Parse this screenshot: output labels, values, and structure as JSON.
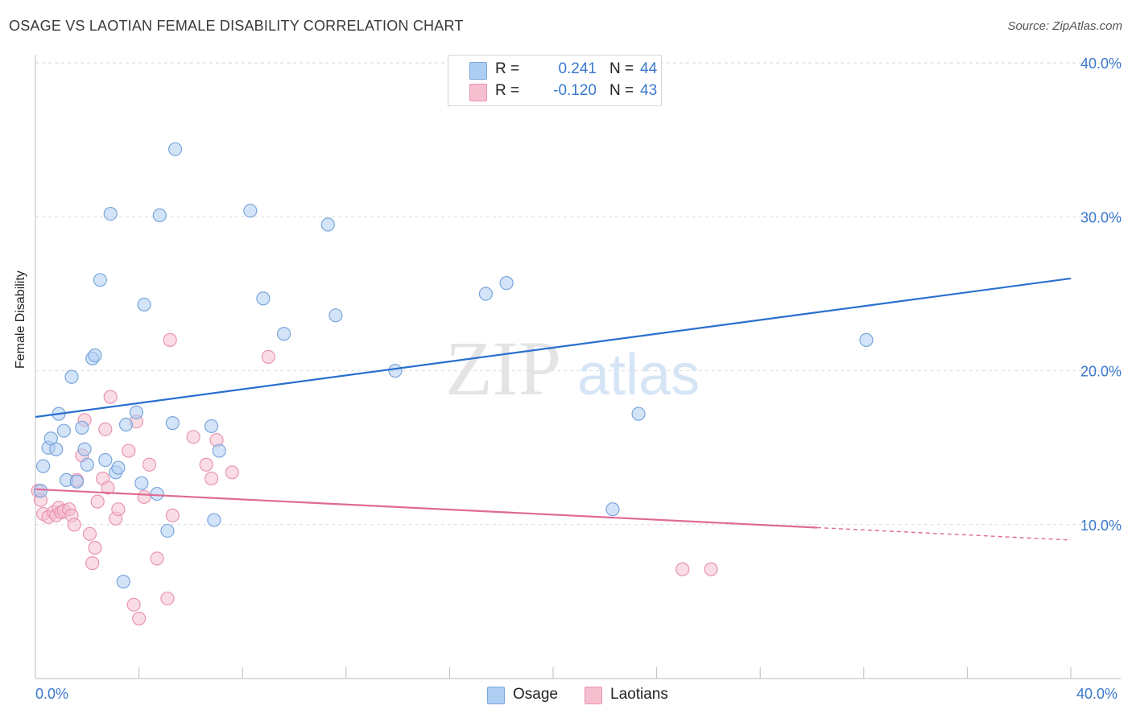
{
  "title": "OSAGE VS LAOTIAN FEMALE DISABILITY CORRELATION CHART",
  "source": "Source: ZipAtlas.com",
  "watermark": {
    "zip": "ZIP",
    "atlas": "atlas"
  },
  "colors": {
    "osage_fill": "#aecdf2",
    "osage_stroke": "#7aa6dc",
    "osage_line": "#2a6fcf",
    "laotian_fill": "#f6bfd0",
    "laotian_stroke": "#e896b0",
    "laotian_line": "#e06a93",
    "axis_text": "#3a78cc",
    "grid": "#dddddd"
  },
  "legend": {
    "rows": [
      {
        "series": "Osage",
        "r_label": "R =",
        "r_value": "0.241",
        "n_label": "N =",
        "n_value": "44"
      },
      {
        "series": "Laotians",
        "r_label": "R =",
        "r_value": "-0.120",
        "n_label": "N =",
        "n_value": "43"
      }
    ]
  },
  "bottom_legend": [
    "Osage",
    "Laotians"
  ],
  "chart_data": {
    "type": "scatter",
    "title": "OSAGE VS LAOTIAN FEMALE DISABILITY CORRELATION CHART",
    "xlabel": "",
    "ylabel": "Female Disability",
    "xlim": [
      0,
      40
    ],
    "ylim": [
      0,
      42
    ],
    "x_tick_labels": [
      "0.0%",
      "40.0%"
    ],
    "y_ticks": [
      10,
      20,
      30,
      40
    ],
    "y_tick_labels": [
      "10.0%",
      "20.0%",
      "30.0%",
      "40.0%"
    ],
    "grid": true,
    "series": [
      {
        "name": "Osage",
        "trend": {
          "x": [
            0,
            40
          ],
          "y": [
            17.0,
            26.0
          ],
          "dashed_from": null
        },
        "points": [
          [
            0.2,
            12.2
          ],
          [
            0.3,
            13.8
          ],
          [
            0.5,
            15.0
          ],
          [
            0.6,
            15.6
          ],
          [
            0.8,
            14.9
          ],
          [
            0.9,
            17.2
          ],
          [
            1.1,
            16.1
          ],
          [
            1.2,
            12.9
          ],
          [
            1.4,
            19.6
          ],
          [
            1.6,
            12.8
          ],
          [
            1.8,
            16.3
          ],
          [
            1.9,
            14.9
          ],
          [
            2.0,
            13.9
          ],
          [
            2.2,
            20.8
          ],
          [
            2.3,
            21.0
          ],
          [
            2.5,
            25.9
          ],
          [
            2.7,
            14.2
          ],
          [
            2.9,
            30.2
          ],
          [
            3.1,
            13.4
          ],
          [
            3.2,
            13.7
          ],
          [
            3.4,
            6.3
          ],
          [
            3.5,
            16.5
          ],
          [
            3.9,
            17.3
          ],
          [
            4.1,
            12.7
          ],
          [
            4.2,
            24.3
          ],
          [
            4.7,
            12.0
          ],
          [
            4.8,
            30.1
          ],
          [
            5.1,
            9.6
          ],
          [
            5.3,
            16.6
          ],
          [
            5.4,
            34.4
          ],
          [
            6.8,
            16.4
          ],
          [
            6.9,
            10.3
          ],
          [
            7.1,
            14.8
          ],
          [
            8.3,
            30.4
          ],
          [
            8.8,
            24.7
          ],
          [
            9.6,
            22.4
          ],
          [
            11.3,
            29.5
          ],
          [
            11.6,
            23.6
          ],
          [
            13.9,
            20.0
          ],
          [
            17.4,
            25.0
          ],
          [
            18.2,
            25.7
          ],
          [
            22.3,
            11.0
          ],
          [
            23.3,
            17.2
          ],
          [
            32.1,
            22.0
          ]
        ]
      },
      {
        "name": "Laotians",
        "trend": {
          "x": [
            0,
            40
          ],
          "y": [
            12.3,
            9.0
          ],
          "dashed_from": 30.2
        },
        "points": [
          [
            0.1,
            12.2
          ],
          [
            0.2,
            11.6
          ],
          [
            0.3,
            10.7
          ],
          [
            0.5,
            10.5
          ],
          [
            0.7,
            10.8
          ],
          [
            0.8,
            10.6
          ],
          [
            0.9,
            11.1
          ],
          [
            1.0,
            10.8
          ],
          [
            1.1,
            10.9
          ],
          [
            1.3,
            11.0
          ],
          [
            1.4,
            10.6
          ],
          [
            1.5,
            10.0
          ],
          [
            1.6,
            12.9
          ],
          [
            1.8,
            14.5
          ],
          [
            1.9,
            16.8
          ],
          [
            2.1,
            9.4
          ],
          [
            2.2,
            7.5
          ],
          [
            2.3,
            8.5
          ],
          [
            2.4,
            11.5
          ],
          [
            2.6,
            13.0
          ],
          [
            2.7,
            16.2
          ],
          [
            2.8,
            12.4
          ],
          [
            2.9,
            18.3
          ],
          [
            3.1,
            10.4
          ],
          [
            3.2,
            11.0
          ],
          [
            3.6,
            14.8
          ],
          [
            3.8,
            4.8
          ],
          [
            3.9,
            16.7
          ],
          [
            4.0,
            3.9
          ],
          [
            4.2,
            11.8
          ],
          [
            4.4,
            13.9
          ],
          [
            4.7,
            7.8
          ],
          [
            5.1,
            5.2
          ],
          [
            5.2,
            22.0
          ],
          [
            5.3,
            10.6
          ],
          [
            6.1,
            15.7
          ],
          [
            6.6,
            13.9
          ],
          [
            6.8,
            13.0
          ],
          [
            7.0,
            15.5
          ],
          [
            7.6,
            13.4
          ],
          [
            9.0,
            20.9
          ],
          [
            25.0,
            7.1
          ],
          [
            26.1,
            7.1
          ]
        ]
      }
    ]
  }
}
